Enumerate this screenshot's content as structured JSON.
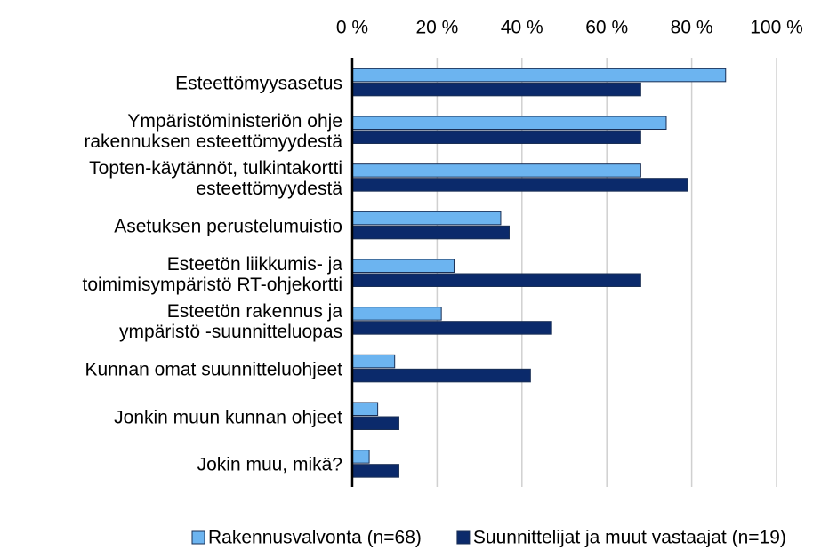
{
  "chart_data": {
    "type": "bar",
    "orientation": "horizontal",
    "categories": [
      "Esteettömyysasetus",
      "Ympäristöministeriön ohje\nrakennuksen esteettömyydestä",
      "Topten-käytännöt, tulkintakortti\nesteettömyydestä",
      "Asetuksen perustelumuistio",
      "Esteetön liikkumis- ja\ntoimimisympäristö RT-ohjekortti",
      "Esteetön rakennus ja\nympäristö -suunnitteluopas",
      "Kunnan omat suunnitteluohjeet",
      "Jonkin muun kunnan ohjeet",
      "Jokin muu, mikä?"
    ],
    "series": [
      {
        "name": "Rakennusvalvonta (n=68)",
        "color": "#6cb4f0",
        "values": [
          88,
          74,
          68,
          35,
          24,
          21,
          10,
          6,
          4
        ]
      },
      {
        "name": "Suunnittelijat ja muut vastaajat (n=19)",
        "color": "#0b2a6b",
        "values": [
          68,
          68,
          79,
          37,
          68,
          47,
          42,
          11,
          11
        ]
      }
    ],
    "xlim": [
      0,
      100
    ],
    "xticks": [
      {
        "value": 0,
        "label": "0 %"
      },
      {
        "value": 20,
        "label": "20 %"
      },
      {
        "value": 40,
        "label": "40 %"
      },
      {
        "value": 60,
        "label": "60 %"
      },
      {
        "value": 80,
        "label": "80 %"
      },
      {
        "value": 100,
        "label": "100 %"
      }
    ],
    "grid": true,
    "legend": "bottom"
  }
}
